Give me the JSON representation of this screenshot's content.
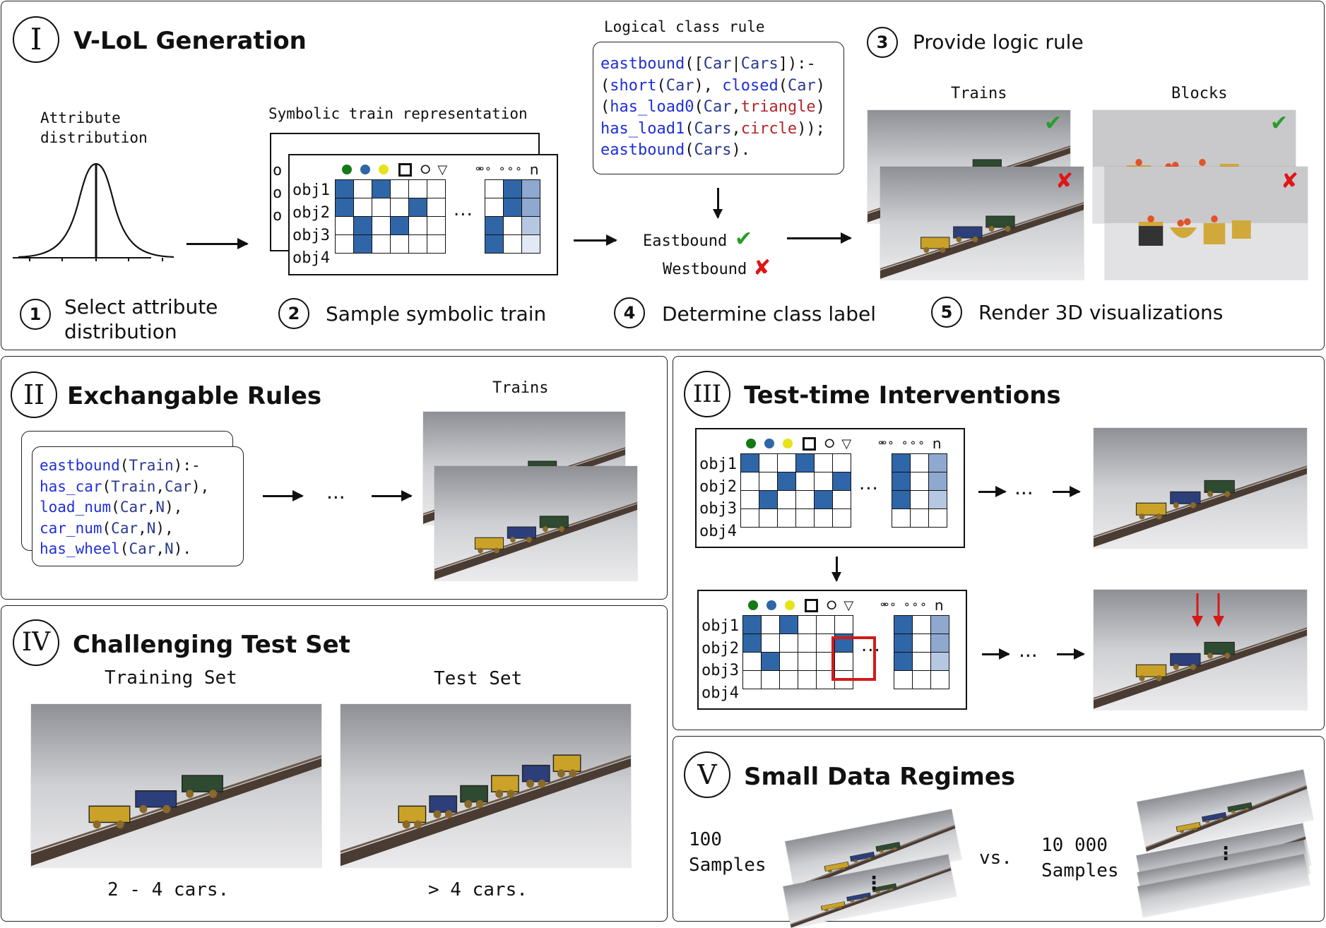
{
  "colors": {
    "accent_blue": "#2f66a8",
    "code_keyword": "#1f2fd6",
    "code_constant": "#b3262b",
    "check": "#2a9d2a",
    "cross": "#e01515",
    "highlight": "#d11b1b"
  },
  "panel1": {
    "roman": "I",
    "title": "V-LoL Generation",
    "attr_label_line1": "Attribute",
    "attr_label_line2": "distribution",
    "symbolic_label": "Symbolic train representation",
    "rule_label": "Logical class rule",
    "rule_lines": [
      [
        {
          "t": "eastbound",
          "c": "kw"
        },
        {
          "t": "([",
          "c": ""
        },
        {
          "t": "Car",
          "c": "vr"
        },
        {
          "t": "|",
          "c": ""
        },
        {
          "t": "Cars",
          "c": "vr"
        },
        {
          "t": "]):-",
          "c": ""
        }
      ],
      [
        {
          "t": "(",
          "c": ""
        },
        {
          "t": "short",
          "c": "kw"
        },
        {
          "t": "(",
          "c": ""
        },
        {
          "t": "Car",
          "c": "vr"
        },
        {
          "t": "), ",
          "c": ""
        },
        {
          "t": "closed",
          "c": "kw"
        },
        {
          "t": "(",
          "c": ""
        },
        {
          "t": "Car",
          "c": "vr"
        },
        {
          "t": ")",
          "c": ""
        }
      ],
      [
        {
          "t": "(",
          "c": ""
        },
        {
          "t": "has_load0",
          "c": "kw"
        },
        {
          "t": "(",
          "c": ""
        },
        {
          "t": "Car",
          "c": "vr"
        },
        {
          "t": ",",
          "c": ""
        },
        {
          "t": "triangle",
          "c": "ct"
        },
        {
          "t": ")",
          "c": ""
        }
      ],
      [
        {
          "t": "has_load1",
          "c": "kw"
        },
        {
          "t": "(",
          "c": ""
        },
        {
          "t": "Cars",
          "c": "vr"
        },
        {
          "t": ",",
          "c": ""
        },
        {
          "t": "circle",
          "c": "ct"
        },
        {
          "t": "));",
          "c": ""
        }
      ],
      [
        {
          "t": "eastbound",
          "c": "kw"
        },
        {
          "t": "(",
          "c": ""
        },
        {
          "t": "Cars",
          "c": "vr"
        },
        {
          "t": ").",
          "c": ""
        }
      ]
    ],
    "eastbound": "Eastbound",
    "westbound": "Westbound",
    "trains_label": "Trains",
    "blocks_label": "Blocks",
    "steps": [
      {
        "num": "1",
        "text_line1": "Select attribute",
        "text_line2": "distribution"
      },
      {
        "num": "2",
        "text": "Sample symbolic train"
      },
      {
        "num": "3",
        "text": "Provide logic rule"
      },
      {
        "num": "4",
        "text": "Determine class label"
      },
      {
        "num": "5",
        "text": "Render 3D visualizations"
      }
    ],
    "check_icon": "check-icon",
    "cross_icon": "cross-icon"
  },
  "matrix": {
    "rows": [
      "obj1",
      "obj2",
      "obj3",
      "obj4"
    ],
    "header_dots": [
      "green",
      "blue",
      "yellow"
    ],
    "header_n": "n",
    "ellipsis": "...",
    "left": [
      [
        1,
        0,
        1,
        0,
        0,
        0
      ],
      [
        1,
        0,
        0,
        0,
        1,
        0
      ],
      [
        0,
        1,
        0,
        1,
        0,
        0
      ],
      [
        0,
        1,
        0,
        0,
        0,
        0
      ]
    ],
    "right": [
      [
        1,
        2,
        0
      ],
      [
        1,
        2,
        0
      ],
      [
        0,
        1,
        0
      ],
      [
        1,
        0,
        0
      ]
    ],
    "right_tint": [
      [
        0,
        1,
        "a"
      ],
      [
        0,
        1,
        "a"
      ],
      [
        1,
        0,
        "b"
      ],
      [
        1,
        0,
        "c"
      ]
    ]
  },
  "panel2": {
    "roman": "II",
    "title": "Exchangable Rules",
    "trains_label": "Trains",
    "ellipsis": "...",
    "code_lines": [
      [
        {
          "t": "eastbound",
          "c": "kw"
        },
        {
          "t": "(",
          "c": ""
        },
        {
          "t": "Train",
          "c": "vr"
        },
        {
          "t": "):-",
          "c": ""
        }
      ],
      [
        {
          "t": "has_car",
          "c": "kw"
        },
        {
          "t": "(",
          "c": ""
        },
        {
          "t": "Train",
          "c": "vr"
        },
        {
          "t": ",",
          "c": ""
        },
        {
          "t": "Car",
          "c": "vr"
        },
        {
          "t": "),",
          "c": ""
        }
      ],
      [
        {
          "t": "load_num",
          "c": "kw"
        },
        {
          "t": "(",
          "c": ""
        },
        {
          "t": "Car",
          "c": "vr"
        },
        {
          "t": ",",
          "c": ""
        },
        {
          "t": "N",
          "c": "vr"
        },
        {
          "t": "),",
          "c": ""
        }
      ],
      [
        {
          "t": "car_num",
          "c": "kw"
        },
        {
          "t": "(",
          "c": ""
        },
        {
          "t": "Car",
          "c": "vr"
        },
        {
          "t": ",",
          "c": ""
        },
        {
          "t": "N",
          "c": "vr"
        },
        {
          "t": "),",
          "c": ""
        }
      ],
      [
        {
          "t": "has_wheel",
          "c": "kw"
        },
        {
          "t": "(",
          "c": ""
        },
        {
          "t": "Car",
          "c": "vr"
        },
        {
          "t": ",",
          "c": ""
        },
        {
          "t": "N",
          "c": "vr"
        },
        {
          "t": ").",
          "c": ""
        }
      ]
    ]
  },
  "panel3": {
    "roman": "III",
    "title": "Test-time Interventions",
    "ellipsis": "..."
  },
  "panel4": {
    "roman": "IV",
    "title": "Challenging Test Set",
    "train_label": "Training Set",
    "test_label": "Test Set",
    "train_caption": "2 - 4 cars.",
    "test_caption": "> 4 cars."
  },
  "panel5": {
    "roman": "V",
    "title": "Small Data Regimes",
    "left_num": "100",
    "left_word": "Samples",
    "vs": "vs.",
    "right_num": "10 000",
    "right_word": "Samples",
    "vdots": "⋮"
  }
}
